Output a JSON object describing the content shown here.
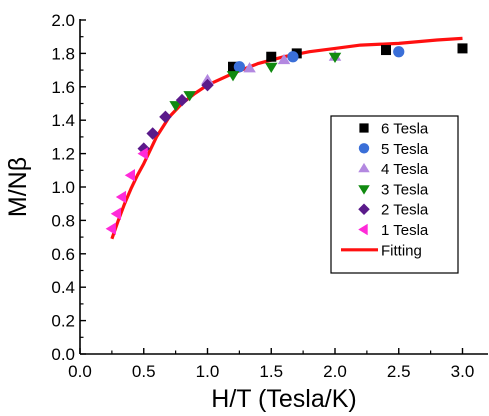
{
  "chart_data": {
    "type": "scatter",
    "xlabel": "H/T (Tesla/K)",
    "ylabel": "M/Nβ",
    "xlim": [
      0.0,
      3.2
    ],
    "ylim": [
      0.0,
      2.0
    ],
    "xticks": [
      0.0,
      0.5,
      1.0,
      1.5,
      2.0,
      2.5,
      3.0
    ],
    "yticks": [
      0.0,
      0.2,
      0.4,
      0.6,
      0.8,
      1.0,
      1.2,
      1.4,
      1.6,
      1.8,
      2.0
    ],
    "x_tick_labels": [
      "0.0",
      "0.5",
      "1.0",
      "1.5",
      "2.0",
      "2.5",
      "3.0"
    ],
    "y_tick_labels": [
      "0.0",
      "0.2",
      "0.4",
      "0.6",
      "0.8",
      "1.0",
      "1.2",
      "1.4",
      "1.6",
      "1.8",
      "2.0"
    ],
    "grid": false,
    "legend_position": "right",
    "series": [
      {
        "name": "6 Tesla",
        "marker": "square",
        "color": "#000000",
        "x": [
          1.2,
          1.5,
          1.7,
          2.4,
          3.0
        ],
        "y": [
          1.72,
          1.78,
          1.8,
          1.82,
          1.83
        ]
      },
      {
        "name": "5 Tesla",
        "marker": "circle",
        "color": "#3a6fd8",
        "x": [
          1.25,
          1.67,
          2.5
        ],
        "y": [
          1.72,
          1.78,
          1.81
        ]
      },
      {
        "name": "4 Tesla",
        "marker": "triangle-up",
        "color": "#b388e0",
        "x": [
          1.0,
          1.33,
          1.6,
          2.0
        ],
        "y": [
          1.64,
          1.71,
          1.76,
          1.78
        ]
      },
      {
        "name": "3 Tesla",
        "marker": "triangle-down",
        "color": "#108a10",
        "x": [
          0.75,
          0.86,
          1.2,
          1.5,
          2.0
        ],
        "y": [
          1.49,
          1.55,
          1.67,
          1.72,
          1.78
        ]
      },
      {
        "name": "2 Tesla",
        "marker": "diamond",
        "color": "#5a1a8a",
        "x": [
          0.5,
          0.57,
          0.67,
          0.8,
          1.0
        ],
        "y": [
          1.23,
          1.32,
          1.42,
          1.52,
          1.61
        ]
      },
      {
        "name": "1 Tesla",
        "marker": "triangle-left",
        "color": "#ff2ad8",
        "x": [
          0.25,
          0.29,
          0.33,
          0.4,
          0.5
        ],
        "y": [
          0.75,
          0.84,
          0.94,
          1.07,
          1.2
        ]
      },
      {
        "name": "Fitting",
        "type": "line",
        "color": "#ff1010",
        "x": [
          0.25,
          0.3,
          0.35,
          0.4,
          0.45,
          0.5,
          0.6,
          0.7,
          0.8,
          0.9,
          1.0,
          1.2,
          1.4,
          1.6,
          1.8,
          2.0,
          2.2,
          2.5,
          2.8,
          3.0
        ],
        "y": [
          0.69,
          0.8,
          0.9,
          0.99,
          1.07,
          1.14,
          1.3,
          1.42,
          1.5,
          1.56,
          1.61,
          1.68,
          1.74,
          1.78,
          1.81,
          1.83,
          1.85,
          1.86,
          1.88,
          1.89
        ]
      }
    ]
  }
}
